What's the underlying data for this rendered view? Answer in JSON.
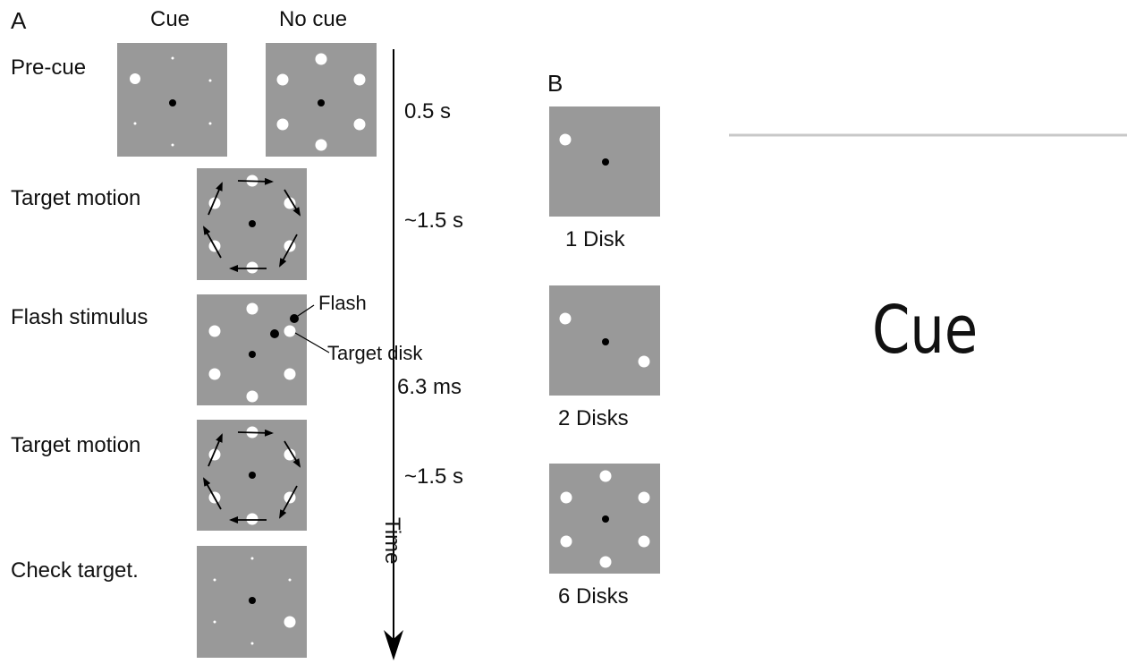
{
  "panel_a": {
    "panel_letter": "A",
    "column_headers": {
      "cue": "Cue",
      "no_cue": "No cue"
    },
    "rows": [
      {
        "label": "Pre-cue",
        "duration": "0.5 s"
      },
      {
        "label": "Target motion",
        "duration": "~1.5 s"
      },
      {
        "label": "Flash stimulus",
        "duration": "6.3 ms"
      },
      {
        "label": "Target motion",
        "duration": "~1.5 s"
      },
      {
        "label": "Check target.",
        "duration": ""
      }
    ],
    "annotations": {
      "flash": "Flash",
      "target_disk": "Target disk"
    },
    "time_axis_label": "Time"
  },
  "panel_b": {
    "panel_letter": "B",
    "conditions": [
      {
        "label": "1 Disk",
        "disk_count": 1
      },
      {
        "label": "2 Disks",
        "disk_count": 2
      },
      {
        "label": "6 Disks",
        "disk_count": 6
      }
    ]
  },
  "side_title": "Cue",
  "colors": {
    "panel_gray": "#999999",
    "disk": "#ffffff",
    "fixation": "#000000",
    "arrow": "#000000",
    "divider": "#c8c8c8"
  }
}
